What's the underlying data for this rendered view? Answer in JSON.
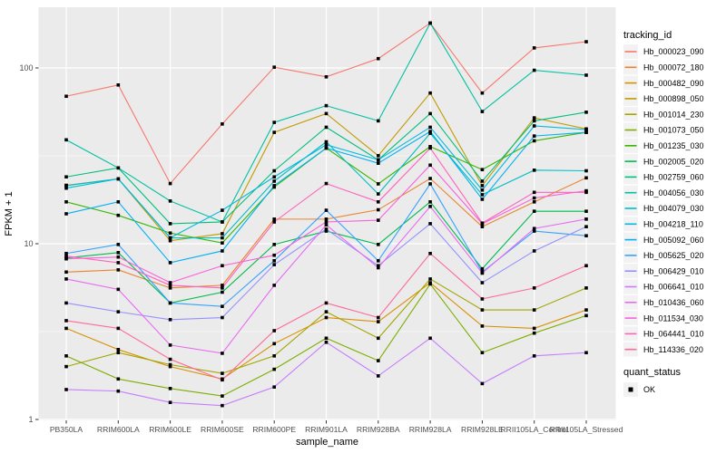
{
  "figure": {
    "bg": "#FFFFFF",
    "panel_bg": "#EBEBEB",
    "grid_color": "#FFFFFF",
    "tick_label_color": "#4D4D4D",
    "axis_title_color": "#000000",
    "marker_color": "#000000",
    "legend_key_bg": "#F2F2F2"
  },
  "chart_data": {
    "type": "line",
    "title": "",
    "xlabel": "sample_name",
    "ylabel": "FPKM + 1",
    "y_scale": "log10",
    "y_tick_labels": [
      "1",
      "10",
      "100"
    ],
    "y_ticks": [
      1,
      10,
      100
    ],
    "y_minor_ticks": [
      3.162,
      31.623
    ],
    "ylim": [
      1.0,
      220
    ],
    "grid": true,
    "legend_position": "right",
    "marker": "black-square",
    "categories": [
      "PB350LA",
      "RRIM600LA",
      "RRIM600LE",
      "RRIM600SE",
      "RRIM600PE",
      "RRIM901LA",
      "RRIM928BA",
      "RRIM928LA",
      "RRIM928LE",
      "RRII105LA_Control",
      "RRII105LA_Stressed"
    ],
    "series": [
      {
        "name": "Hb_000023_090",
        "color": "#F8766D",
        "values": [
          69,
          80,
          22,
          48,
          101,
          89,
          113,
          180,
          72,
          130,
          141
        ]
      },
      {
        "name": "Hb_000072_180",
        "color": "#EA8331",
        "values": [
          6.9,
          7.1,
          5.6,
          5.8,
          13.8,
          13.8,
          15.6,
          23.5,
          12.5,
          17.3,
          23.7
        ]
      },
      {
        "name": "Hb_000482_090",
        "color": "#D89000",
        "values": [
          3.3,
          2.5,
          2.0,
          1.7,
          2.7,
          3.8,
          3.6,
          6.0,
          3.4,
          3.3,
          4.2
        ]
      },
      {
        "name": "Hb_000898_050",
        "color": "#C09B00",
        "values": [
          21.5,
          23.4,
          10.4,
          11.4,
          43,
          55,
          31.7,
          72,
          21.4,
          52,
          45
        ]
      },
      {
        "name": "Hb_001014_230",
        "color": "#A3A500",
        "values": [
          2.0,
          2.4,
          2.05,
          1.83,
          2.3,
          4.1,
          2.9,
          6.3,
          4.2,
          4.2,
          5.6
        ]
      },
      {
        "name": "Hb_001073_050",
        "color": "#7CAE00",
        "values": [
          2.3,
          1.7,
          1.5,
          1.36,
          1.93,
          2.9,
          2.16,
          5.9,
          2.4,
          3.1,
          3.9
        ]
      },
      {
        "name": "Hb_001235_030",
        "color": "#39B600",
        "values": [
          17.3,
          14.5,
          11.5,
          10.1,
          21,
          35,
          21.9,
          35.7,
          26.4,
          38.5,
          43
        ]
      },
      {
        "name": "Hb_002005_020",
        "color": "#00BB4E",
        "values": [
          8.3,
          8.9,
          4.6,
          5.3,
          9.9,
          11.8,
          9.9,
          17.3,
          7.2,
          15.3,
          15.3
        ]
      },
      {
        "name": "Hb_002759_060",
        "color": "#00BF7D",
        "values": [
          24,
          27,
          13,
          13.3,
          26,
          46,
          30,
          55,
          22.7,
          50,
          56
        ]
      },
      {
        "name": "Hb_004056_030",
        "color": "#00C1A3",
        "values": [
          39,
          27,
          17.5,
          13.3,
          49,
          61,
          50,
          180,
          56.5,
          97,
          91
        ]
      },
      {
        "name": "Hb_004079_030",
        "color": "#00BFC4",
        "values": [
          20.7,
          23.4,
          10.8,
          10.8,
          22.7,
          38,
          19.2,
          42.5,
          19.0,
          26.2,
          26
        ]
      },
      {
        "name": "Hb_004218_110",
        "color": "#00BAE0",
        "values": [
          21.4,
          23.4,
          10.8,
          15.5,
          24,
          36.6,
          30,
          46,
          20.2,
          46.8,
          44.6
        ]
      },
      {
        "name": "Hb_005092_060",
        "color": "#00B0F6",
        "values": [
          14.8,
          17.3,
          7.8,
          9.1,
          21.4,
          35,
          28.7,
          43.5,
          17.9,
          41,
          43
        ]
      },
      {
        "name": "Hb_005625_020",
        "color": "#35A2FF",
        "values": [
          8.8,
          9.9,
          4.6,
          4.4,
          8.0,
          15.5,
          8.0,
          21.9,
          6.9,
          11.8,
          11.1
        ]
      },
      {
        "name": "Hb_006429_010",
        "color": "#9590FF",
        "values": [
          4.6,
          4.1,
          3.7,
          3.8,
          7.6,
          12.1,
          7.5,
          13.0,
          6.0,
          9.1,
          12.5
        ]
      },
      {
        "name": "Hb_006641_010",
        "color": "#C77CFF",
        "values": [
          1.48,
          1.45,
          1.25,
          1.2,
          1.53,
          2.75,
          1.77,
          2.9,
          1.6,
          2.3,
          2.4
        ]
      },
      {
        "name": "Hb_010436_060",
        "color": "#E76BF3",
        "values": [
          6.3,
          5.5,
          2.65,
          2.38,
          5.8,
          12.8,
          7.3,
          16.3,
          6.8,
          12.2,
          13.8
        ]
      },
      {
        "name": "Hb_011534_030",
        "color": "#FA62DB",
        "values": [
          8.2,
          8.4,
          6.0,
          7.5,
          8.6,
          13.3,
          13.6,
          28,
          13.0,
          18.2,
          20
        ]
      },
      {
        "name": "Hb_064441_010",
        "color": "#FF62BC",
        "values": [
          8.5,
          7.8,
          5.8,
          5.6,
          13.3,
          22,
          17.3,
          35,
          13.1,
          19.6,
          19.6
        ]
      },
      {
        "name": "Hb_114336_020",
        "color": "#FF6A98",
        "values": [
          3.65,
          3.3,
          2.2,
          1.68,
          3.2,
          4.6,
          3.8,
          8.8,
          4.85,
          5.6,
          7.5
        ]
      }
    ],
    "legend": {
      "color_legend_title": "tracking_id",
      "shape_legend_title": "quant_status",
      "shape_legend_items": [
        {
          "label": "OK",
          "marker": "black-square"
        }
      ]
    }
  }
}
